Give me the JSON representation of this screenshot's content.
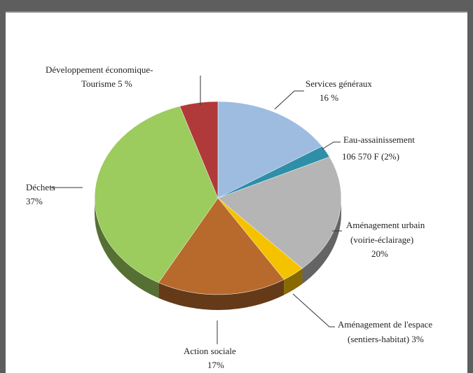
{
  "chart_data": {
    "type": "pie",
    "title": "",
    "slices": [
      {
        "label": "Services généraux",
        "value_label": "16 %",
        "value": 16,
        "color": "#9dbce0"
      },
      {
        "label": "Eau-assainissement",
        "value_label": "106 570 F (2%)",
        "value": 2,
        "color": "#2f8ea8"
      },
      {
        "label": "Aménagement urbain (voirie-éclairage)",
        "value_label": "20%",
        "value": 20,
        "color": "#b5b5b5"
      },
      {
        "label": "Aménagement de l'espace (sentiers-habitat)",
        "value_label": "3%",
        "value": 3,
        "color": "#f5c200"
      },
      {
        "label": "Action sociale",
        "value_label": "17%",
        "value": 17,
        "color": "#b86a2c"
      },
      {
        "label": "Déchets",
        "value_label": "37%",
        "value": 37,
        "color": "#9ccb5e"
      },
      {
        "label": "Développement économique-Tourisme",
        "value_label": "5 %",
        "value": 5,
        "color": "#b03a3a"
      }
    ]
  },
  "labels": {
    "services_l1": "Services généraux",
    "services_l2": "16 %",
    "eau_l1": "Eau-assainissement",
    "eau_l2": "106 570 F  (2%)",
    "urbain_l1": "Aménagement urbain",
    "urbain_l2": "(voirie-éclairage)",
    "urbain_l3": "20%",
    "espace_l1": "Aménagement de l'espace",
    "espace_l2": "(sentiers-habitat)  3%",
    "action_l1": "Action sociale",
    "action_l2": "17%",
    "dechets_l1": "Déchets",
    "dechets_l2": "37%",
    "dev_l1": "Développement économique-",
    "dev_l2": "Tourisme  5 %"
  }
}
